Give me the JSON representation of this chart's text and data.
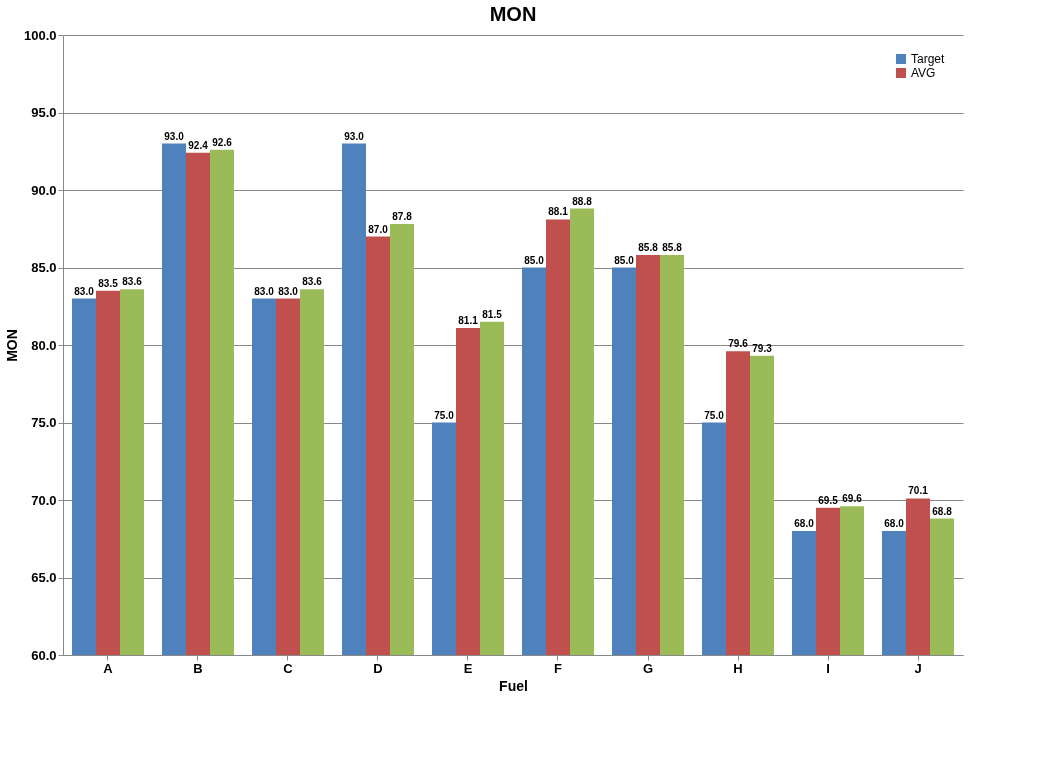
{
  "chart_data": {
    "type": "bar",
    "title": "MON",
    "xlabel": "Fuel",
    "ylabel": "MON",
    "categories": [
      "A",
      "B",
      "C",
      "D",
      "E",
      "F",
      "G",
      "H",
      "I",
      "J"
    ],
    "series": [
      {
        "name": "Target",
        "color": "#4f81bd",
        "values": [
          83.0,
          93.0,
          83.0,
          93.0,
          75.0,
          85.0,
          85.0,
          75.0,
          68.0,
          68.0
        ],
        "value_labels": [
          "83.0",
          "93.0",
          "83.0",
          "93.0",
          "75.0",
          "85.0",
          "85.0",
          "75.0",
          "68.0",
          "68.0"
        ]
      },
      {
        "name": "AVG",
        "color": "#c0504d",
        "values": [
          83.5,
          92.4,
          83.0,
          87.0,
          81.1,
          88.1,
          85.8,
          79.6,
          69.5,
          70.1
        ],
        "value_labels": [
          "83.5",
          "92.4",
          "83.0",
          "87.0",
          "81.1",
          "88.1",
          "85.8",
          "79.6",
          "69.5",
          "70.1"
        ]
      },
      {
        "color": "#9bbb59",
        "values": [
          83.6,
          92.6,
          83.6,
          87.8,
          81.5,
          88.8,
          85.8,
          79.3,
          69.6,
          68.8
        ],
        "value_labels": [
          "83.6",
          "92.6",
          "83.6",
          "87.8",
          "81.5",
          "88.8",
          "85.8",
          "79.3",
          "69.6",
          "68.8"
        ]
      }
    ],
    "ylim": [
      60,
      100
    ],
    "yticks": [
      {
        "value": 60,
        "label": "60.0"
      },
      {
        "value": 65,
        "label": "65.0"
      },
      {
        "value": 70,
        "label": "70.0"
      },
      {
        "value": 75,
        "label": "75.0"
      },
      {
        "value": 80,
        "label": "80.0"
      },
      {
        "value": 85,
        "label": "85.0"
      },
      {
        "value": 90,
        "label": "90.0"
      },
      {
        "value": 95,
        "label": "95.0"
      },
      {
        "value": 100,
        "label": "100.0"
      }
    ],
    "grid": "y",
    "legend": "top right"
  }
}
